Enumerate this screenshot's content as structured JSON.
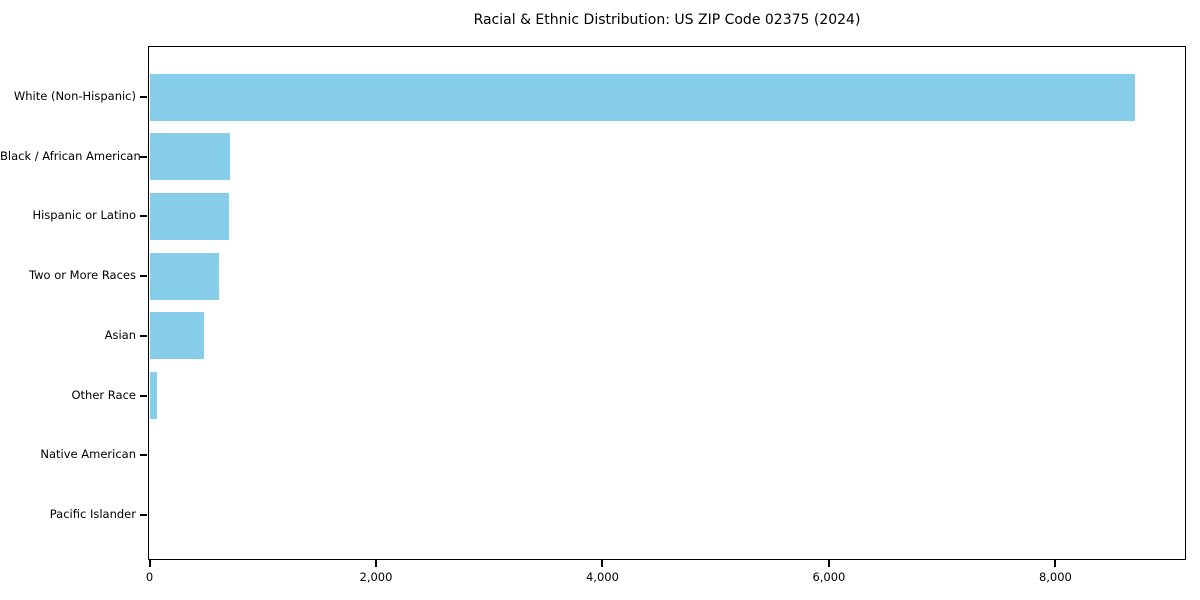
{
  "chart_data": {
    "type": "bar",
    "orientation": "horizontal",
    "title": "Racial & Ethnic Distribution: US ZIP Code 02375 (2024)",
    "categories": [
      "White (Non-Hispanic)",
      "Black / African American",
      "Hispanic or Latino",
      "Two or More Races",
      "Asian",
      "Other Race",
      "Native American",
      "Pacific Islander"
    ],
    "values": [
      8700,
      715,
      700,
      610,
      480,
      70,
      0,
      0
    ],
    "xlabel": "",
    "ylabel": "",
    "xlim": [
      0,
      9140
    ],
    "x_ticks": [
      0,
      2000,
      4000,
      6000,
      8000
    ],
    "x_tick_labels": [
      "0",
      "2,000",
      "4,000",
      "6,000",
      "8,000"
    ],
    "bar_color": "#87CEEB",
    "text_color": "#000000",
    "spine_color": "#000000",
    "background_color": "#FFFFFF",
    "grid": false,
    "legend": "none"
  }
}
